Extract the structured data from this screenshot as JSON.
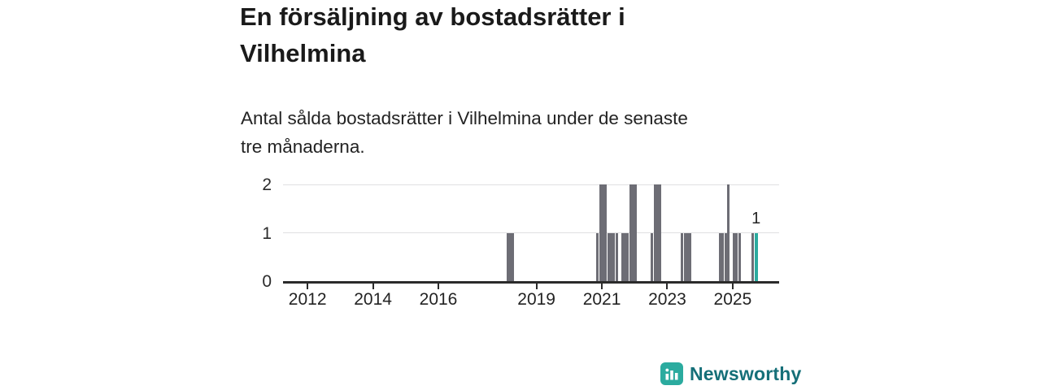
{
  "header": {
    "title_line1": "En försäljning av bostadsrätter i",
    "title_line2": "Vilhelmina",
    "subtitle_line1": "Antal sålda bostadsrätter i Vilhelmina under de senaste",
    "subtitle_line2": "tre månaderna."
  },
  "footer": {
    "brand": "Newsworthy",
    "logo_icon": "bar-chart-icon"
  },
  "colors": {
    "title": "#1a1a1a",
    "bar": "#6d6d75",
    "highlight": "#2bab9f",
    "gridline": "#e0e0e2",
    "axis": "#2b2b2b",
    "brand_icon": "#2bab9f",
    "brand_text": "#156f78"
  },
  "chart_data": {
    "type": "bar",
    "title": "En försäljning av bostadsrätter i Vilhelmina",
    "subtitle": "Antal sålda bostadsrätter i Vilhelmina under de senaste tre månaderna.",
    "xlabel": "",
    "ylabel": "",
    "x_domain_years": [
      2011.25,
      2026.42
    ],
    "x_ticks": [
      "2012",
      "2014",
      "2016",
      "2019",
      "2021",
      "2023",
      "2025"
    ],
    "y_ticks": [
      "0",
      "1",
      "2"
    ],
    "ylim": [
      0,
      2
    ],
    "y_gridlines": [
      1,
      2
    ],
    "grid": true,
    "legend_position": "none",
    "bars": [
      {
        "month": "2018-02",
        "value": 1
      },
      {
        "month": "2018-03",
        "value": 1
      },
      {
        "month": "2018-04",
        "value": 1
      },
      {
        "month": "2020-11",
        "value": 1
      },
      {
        "month": "2020-12",
        "value": 2
      },
      {
        "month": "2021-01",
        "value": 2
      },
      {
        "month": "2021-02",
        "value": 2
      },
      {
        "month": "2021-03",
        "value": 1
      },
      {
        "month": "2021-04",
        "value": 1
      },
      {
        "month": "2021-05",
        "value": 1
      },
      {
        "month": "2021-06",
        "value": 1
      },
      {
        "month": "2021-08",
        "value": 1
      },
      {
        "month": "2021-09",
        "value": 1
      },
      {
        "month": "2021-10",
        "value": 1
      },
      {
        "month": "2021-11",
        "value": 2
      },
      {
        "month": "2021-12",
        "value": 2
      },
      {
        "month": "2022-01",
        "value": 2
      },
      {
        "month": "2022-07",
        "value": 1
      },
      {
        "month": "2022-08",
        "value": 2
      },
      {
        "month": "2022-09",
        "value": 2
      },
      {
        "month": "2022-10",
        "value": 2
      },
      {
        "month": "2023-06",
        "value": 1
      },
      {
        "month": "2023-07",
        "value": 1
      },
      {
        "month": "2023-08",
        "value": 1
      },
      {
        "month": "2023-09",
        "value": 1
      },
      {
        "month": "2024-08",
        "value": 1
      },
      {
        "month": "2024-09",
        "value": 1
      },
      {
        "month": "2024-10",
        "value": 1
      },
      {
        "month": "2024-11",
        "value": 2
      },
      {
        "month": "2025-01",
        "value": 1
      },
      {
        "month": "2025-02",
        "value": 1
      },
      {
        "month": "2025-03",
        "value": 1
      },
      {
        "month": "2025-08",
        "value": 1
      },
      {
        "month": "2025-09",
        "value": 1,
        "highlight": true,
        "label": "1"
      }
    ]
  }
}
